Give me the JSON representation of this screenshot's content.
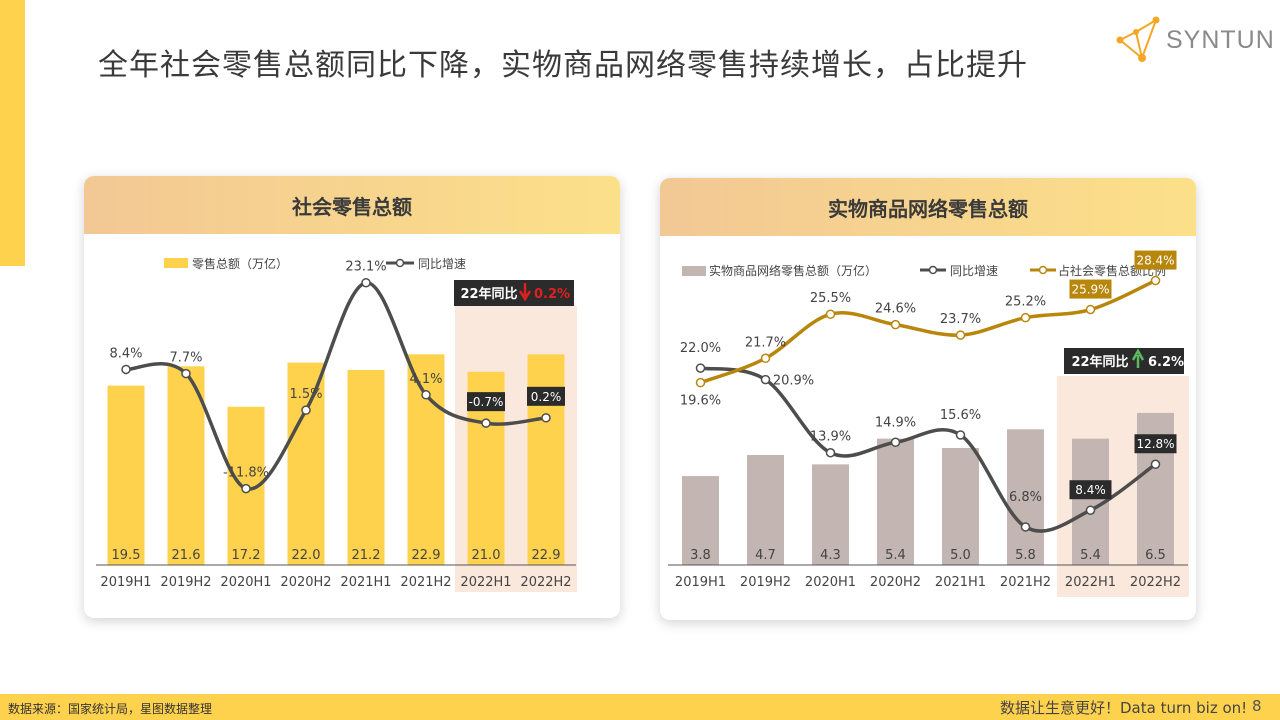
{
  "page": {
    "title": "全年社会零售总额同比下降，实物商品网络零售持续增长，占比提升",
    "logo_text": "SYNTUN",
    "footer_source": "数据来源：国家统计局，星图数据整理",
    "footer_slogan": "数据让生意更好！Data turn biz on!",
    "page_number": "8"
  },
  "colors": {
    "accent_yellow": "#FFD24D",
    "bar_yellow": "#FFD24D",
    "bar_gray": "#C3B5B1",
    "line_dark": "#4D4D4D",
    "line_gold": "#B8860B",
    "highlight": "#FBE8DC",
    "down_red": "#E02020",
    "up_green": "#5CB85C"
  },
  "chart_data": [
    {
      "type": "bar",
      "title": "社会零售总额",
      "categories": [
        "2019H1",
        "2019H2",
        "2020H1",
        "2020H2",
        "2021H1",
        "2021H2",
        "2022H1",
        "2022H2"
      ],
      "series": [
        {
          "name": "零售总额（万亿）",
          "type": "bar",
          "values": [
            19.5,
            21.6,
            17.2,
            22.0,
            21.2,
            22.9,
            21.0,
            22.9
          ]
        },
        {
          "name": "同比增速",
          "type": "line",
          "values": [
            8.4,
            7.7,
            -11.8,
            1.5,
            23.1,
            4.1,
            -0.7,
            0.2
          ],
          "labels": [
            "8.4%",
            "7.7%",
            "-11.8%",
            "1.5%",
            "23.1%",
            "4.1%",
            "-0.7%",
            "0.2%"
          ]
        }
      ],
      "callout": {
        "label": "22年同比",
        "value": "0.2%",
        "direction": "down"
      },
      "highlight_categories": [
        "2022H1",
        "2022H2"
      ]
    },
    {
      "type": "bar",
      "title": "实物商品网络零售总额",
      "categories": [
        "2019H1",
        "2019H2",
        "2020H1",
        "2020H2",
        "2021H1",
        "2021H2",
        "2022H1",
        "2022H2"
      ],
      "series": [
        {
          "name": "实物商品网络零售总额（万亿）",
          "type": "bar",
          "values": [
            3.8,
            4.7,
            4.3,
            5.4,
            5.0,
            5.8,
            5.4,
            6.5
          ]
        },
        {
          "name": "同比增速",
          "type": "line",
          "values": [
            22.0,
            20.9,
            13.9,
            14.9,
            15.6,
            6.8,
            8.4,
            12.8
          ],
          "labels": [
            "22.0%",
            "20.9%",
            "13.9%",
            "14.9%",
            "15.6%",
            "6.8%",
            "8.4%",
            "12.8%"
          ]
        },
        {
          "name": "占社会零售总额比例",
          "type": "line",
          "values": [
            19.6,
            21.7,
            25.5,
            24.6,
            23.7,
            25.2,
            25.9,
            28.4
          ],
          "labels": [
            "19.6%",
            "21.7%",
            "25.5%",
            "24.6%",
            "23.7%",
            "25.2%",
            "25.9%",
            "28.4%"
          ]
        }
      ],
      "callout": {
        "label": "22年同比",
        "value": "6.2%",
        "direction": "up"
      },
      "highlight_categories": [
        "2022H1",
        "2022H2"
      ]
    }
  ]
}
